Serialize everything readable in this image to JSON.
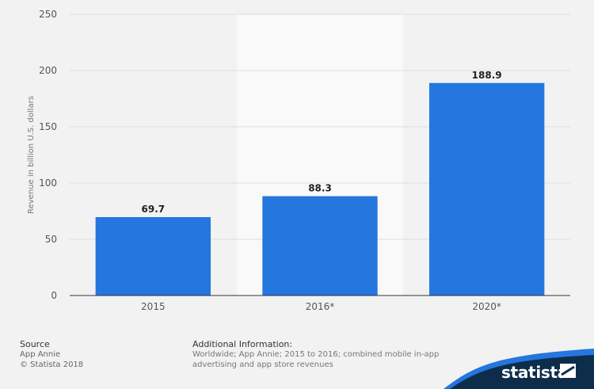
{
  "chart_data": {
    "type": "bar",
    "categories": [
      "2015",
      "2016*",
      "2020*"
    ],
    "values": [
      69.7,
      88.3,
      188.9
    ],
    "data_labels": [
      "69.7",
      "88.3",
      "188.9"
    ],
    "title": "",
    "xlabel": "",
    "ylabel": "Revenue in billion U.S. dollars",
    "ylim": [
      0,
      250
    ],
    "yticks": [
      "0",
      "50",
      "100",
      "150",
      "200",
      "250"
    ],
    "ytick_values": [
      0,
      50,
      100,
      150,
      200,
      250
    ],
    "grid": true,
    "bar_color": "#2576de",
    "highlight_band_category": "2016*"
  },
  "footer": {
    "source_title": "Source",
    "source_name": "App Annie",
    "copyright": "© Statista 2018",
    "info_title": "Additional Information:",
    "info_line1": "Worldwide; App Annie; 2015 to 2016; combined mobile in-app",
    "info_line2": "advertising and app store revenues",
    "brand": "statista"
  },
  "colors": {
    "background": "#f2f2f2",
    "accent": "#2576de",
    "brand_dark": "#0d2d4a"
  }
}
